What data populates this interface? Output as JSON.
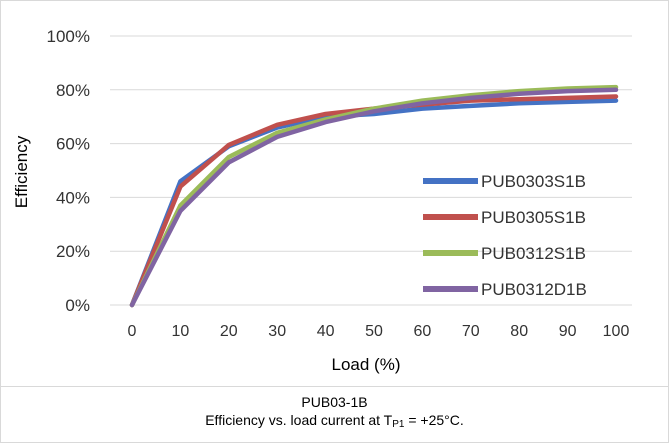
{
  "chart_data": {
    "type": "line",
    "xlabel": "Load (%)",
    "ylabel": "Efficiency",
    "x": [
      0,
      10,
      20,
      30,
      40,
      50,
      60,
      70,
      80,
      90,
      100
    ],
    "xlim": [
      0,
      100
    ],
    "ylim": [
      0,
      100
    ],
    "x_ticks": [
      "0",
      "10",
      "20",
      "30",
      "40",
      "50",
      "60",
      "70",
      "80",
      "90",
      "100"
    ],
    "y_ticks": [
      "0%",
      "20%",
      "40%",
      "60%",
      "80%",
      "100%"
    ],
    "y_tick_values": [
      0,
      20,
      40,
      60,
      80,
      100
    ],
    "grid": true,
    "legend_position": "right",
    "series": [
      {
        "name": "PUB0303S1B",
        "color": "#4472c4",
        "values": [
          0,
          46,
          59,
          66,
          70,
          71,
          73,
          74,
          75,
          75.5,
          76
        ]
      },
      {
        "name": "PUB0305S1B",
        "color": "#c0504d",
        "values": [
          0,
          44,
          59.5,
          67,
          71,
          73,
          74.5,
          76,
          76.5,
          77,
          77.5
        ]
      },
      {
        "name": "PUB0312S1B",
        "color": "#9bbb59",
        "values": [
          0,
          37,
          55,
          64,
          69,
          73,
          76,
          78,
          79.5,
          80.5,
          81
        ]
      },
      {
        "name": "PUB0312D1B",
        "color": "#8064a2",
        "values": [
          0,
          35,
          53,
          62.5,
          68,
          72,
          75,
          77,
          78.5,
          79.5,
          80
        ]
      }
    ]
  },
  "caption": {
    "model": "PUB03-1B",
    "text_before": "Efficiency vs. load current at T",
    "subscript": "P1",
    "text_after": " = +25°C."
  }
}
